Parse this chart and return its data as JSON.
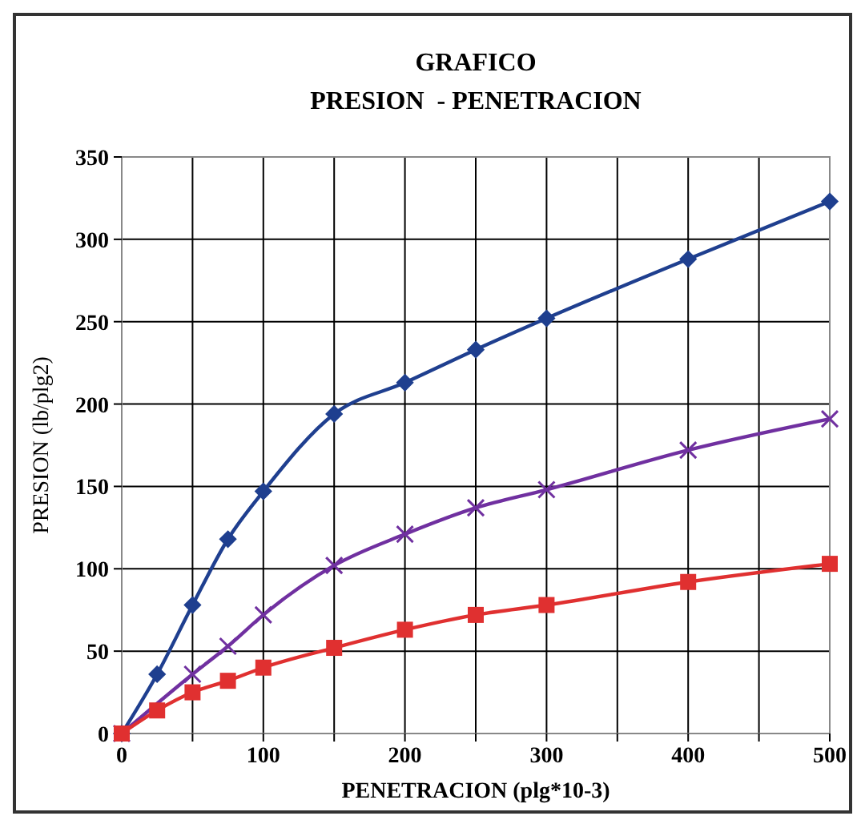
{
  "chart_data": {
    "type": "line",
    "title": "GRAFICO",
    "subtitle": "PRESION  - PENETRACION",
    "xlabel": "PENETRACION (plg*10-3)",
    "ylabel": "PRESION (lb/plg2)",
    "xlim": [
      0,
      500
    ],
    "ylim": [
      0,
      350
    ],
    "xticks": [
      0,
      {
        "value": 50,
        "label": null
      },
      100,
      {
        "value": 150,
        "label": null
      },
      200,
      {
        "value": 250,
        "label": null
      },
      300,
      {
        "value": 350,
        "label": null
      },
      400,
      {
        "value": 450,
        "label": null
      },
      500
    ],
    "yticks": [
      0,
      50,
      100,
      150,
      200,
      250,
      300,
      350
    ],
    "grid": true,
    "series": [
      {
        "color": "#1f3f8f",
        "marker": "diamond",
        "x": [
          0,
          25,
          50,
          75,
          100,
          150,
          200,
          250,
          300,
          400,
          500
        ],
        "values": [
          0,
          36,
          78,
          118,
          147,
          194,
          213,
          233,
          252,
          288,
          323
        ]
      },
      {
        "color": "#7030a0",
        "marker": "cross",
        "x": [
          0,
          50,
          75,
          100,
          150,
          200,
          250,
          300,
          400,
          500
        ],
        "values": [
          0,
          36,
          53,
          72,
          102,
          121,
          137,
          148,
          172,
          191
        ]
      },
      {
        "color": "#e03030",
        "marker": "square",
        "x": [
          0,
          25,
          50,
          75,
          100,
          150,
          200,
          250,
          300,
          400,
          500
        ],
        "values": [
          0,
          14,
          25,
          32,
          40,
          52,
          63,
          72,
          78,
          92,
          103
        ]
      }
    ]
  }
}
